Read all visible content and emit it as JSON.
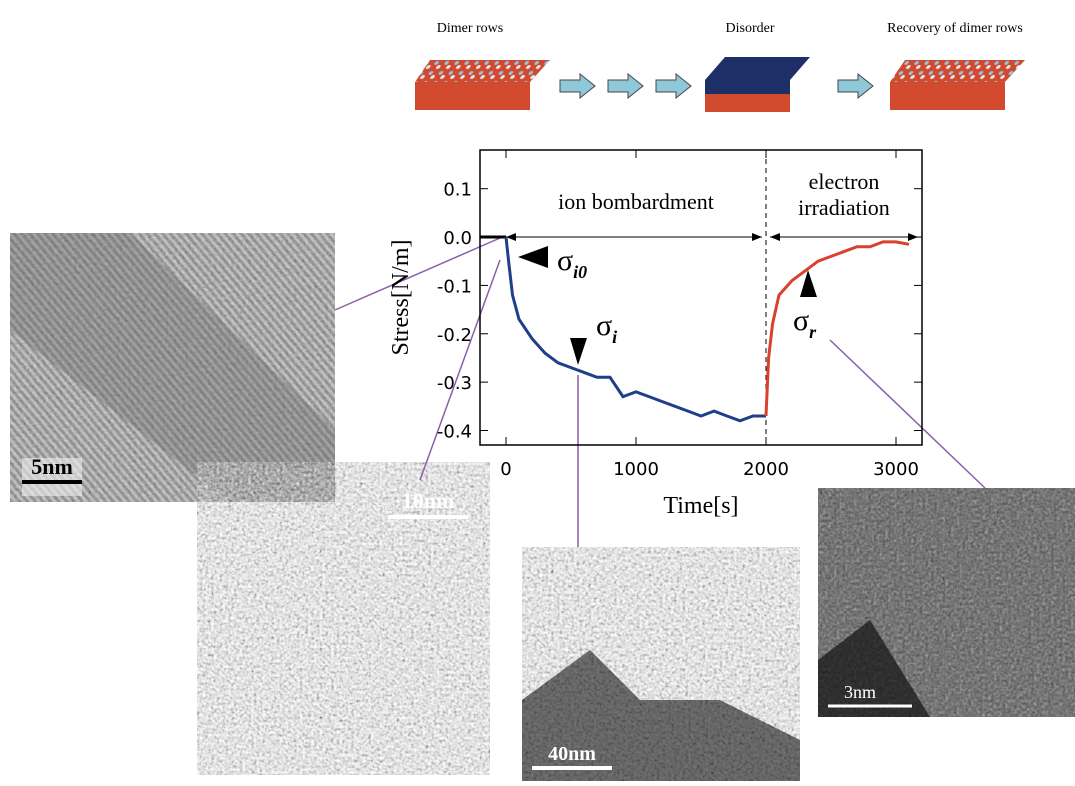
{
  "chart_data": {
    "type": "line",
    "xlabel": "Time[s]",
    "ylabel": "Stress[N/m]",
    "xlim": [
      -200,
      3200
    ],
    "ylim": [
      -0.43,
      0.18
    ],
    "xticks": [
      0,
      1000,
      2000,
      3000
    ],
    "yticks": [
      0.1,
      {
        "value": 0,
        "label": "0.0"
      },
      -0.1,
      -0.2,
      -0.3,
      -0.4
    ],
    "divider_x": 2000,
    "regions": [
      "ion bombardment",
      "electron\nirradiation"
    ],
    "series": [
      {
        "color": "#1f3f8a",
        "x": [
          0,
          20,
          50,
          100,
          200,
          300,
          400,
          500,
          600,
          700,
          800,
          900,
          1000,
          1100,
          1200,
          1300,
          1400,
          1500,
          1600,
          1700,
          1800,
          1900,
          2000
        ],
        "values": [
          0,
          -0.05,
          -0.12,
          -0.17,
          -0.21,
          -0.24,
          -0.26,
          -0.27,
          -0.28,
          -0.29,
          -0.29,
          -0.33,
          -0.32,
          -0.33,
          -0.34,
          -0.35,
          -0.36,
          -0.37,
          -0.36,
          -0.37,
          -0.38,
          -0.37,
          -0.37
        ]
      },
      {
        "color": "#d9412b",
        "x": [
          2000,
          2020,
          2050,
          2100,
          2200,
          2300,
          2400,
          2500,
          2600,
          2700,
          2800,
          2900,
          3000,
          3100
        ],
        "values": [
          -0.37,
          -0.25,
          -0.18,
          -0.12,
          -0.09,
          -0.07,
          -0.05,
          -0.04,
          -0.03,
          -0.02,
          -0.02,
          -0.01,
          -0.01,
          -0.015
        ]
      }
    ],
    "markers": [
      {
        "symbol": "σ",
        "subscript": "i0"
      },
      {
        "symbol": "σ",
        "subscript": "i"
      },
      {
        "symbol": "σ",
        "subscript": "r"
      }
    ],
    "schematic": [
      "Dimer rows",
      "Disorder",
      "Recovery of dimer rows"
    ],
    "scale_bars": [
      "5nm",
      "10nm",
      "40nm",
      "3nm"
    ]
  }
}
